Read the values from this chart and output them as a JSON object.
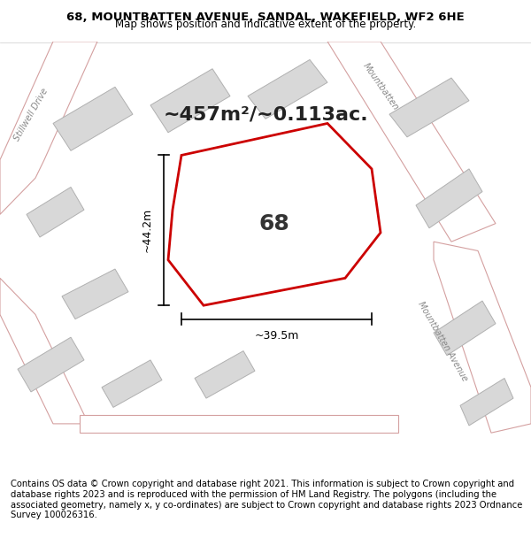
{
  "title_line1": "68, MOUNTBATTEN AVENUE, SANDAL, WAKEFIELD, WF2 6HE",
  "title_line2": "Map shows position and indicative extent of the property.",
  "area_label": "~457m²/~0.113ac.",
  "plot_number": "68",
  "dim_height": "~44.2m",
  "dim_width": "~39.5m",
  "footer": "Contains OS data © Crown copyright and database right 2021. This information is subject to Crown copyright and database rights 2023 and is reproduced with the permission of HM Land Registry. The polygons (including the associated geometry, namely x, y co-ordinates) are subject to Crown copyright and database rights 2023 Ordnance Survey 100026316.",
  "bg_color": "#f5f0ee",
  "map_bg": "#f5f0ee",
  "road_color": "#ffffff",
  "road_outline_color": "#d4a0a0",
  "building_fill": "#d8d8d8",
  "building_outline": "#b0b0b0",
  "plot_fill": "#ffffff",
  "plot_outline": "#cc0000",
  "street_label_color": "#888888",
  "title_color": "#000000",
  "dim_color": "#000000",
  "footer_color": "#000000"
}
